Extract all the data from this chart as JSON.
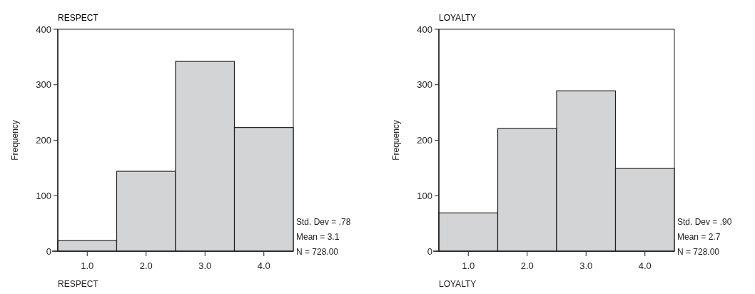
{
  "chart_data": [
    {
      "type": "histogram",
      "title": "RESPECT",
      "xlabel": "RESPECT",
      "ylabel": "Frequency",
      "bins": [
        0.5,
        1.5,
        2.5,
        3.5,
        4.5
      ],
      "values": [
        19,
        144,
        342,
        223
      ],
      "color": "#d3d4d6",
      "xlim": [
        0.5,
        4.5
      ],
      "xticks": [
        {
          "value": 1,
          "label": "1.0"
        },
        {
          "value": 2,
          "label": "2.0"
        },
        {
          "value": 3,
          "label": "3.0"
        },
        {
          "value": 4,
          "label": "4.0"
        }
      ],
      "ylim": [
        0,
        400
      ],
      "yticks": [
        0,
        100,
        200,
        300,
        400
      ],
      "annotations": [
        "Std. Dev = .78",
        "Mean = 3.1",
        "N = 728.00"
      ]
    },
    {
      "type": "histogram",
      "title": "LOYALTY",
      "xlabel": "LOYALTY",
      "ylabel": "Frequency",
      "bins": [
        0.5,
        1.5,
        2.5,
        3.5,
        4.5
      ],
      "values": [
        69,
        221,
        289,
        149
      ],
      "color": "#d3d4d6",
      "xlim": [
        0.5,
        4.5
      ],
      "xticks": [
        {
          "value": 1,
          "label": "1.0"
        },
        {
          "value": 2,
          "label": "2.0"
        },
        {
          "value": 3,
          "label": "3.0"
        },
        {
          "value": 4,
          "label": "4.0"
        }
      ],
      "ylim": [
        0,
        400
      ],
      "yticks": [
        0,
        100,
        200,
        300,
        400
      ],
      "annotations": [
        "Std. Dev = .90",
        "Mean = 2.7",
        "N = 728.00"
      ]
    }
  ]
}
